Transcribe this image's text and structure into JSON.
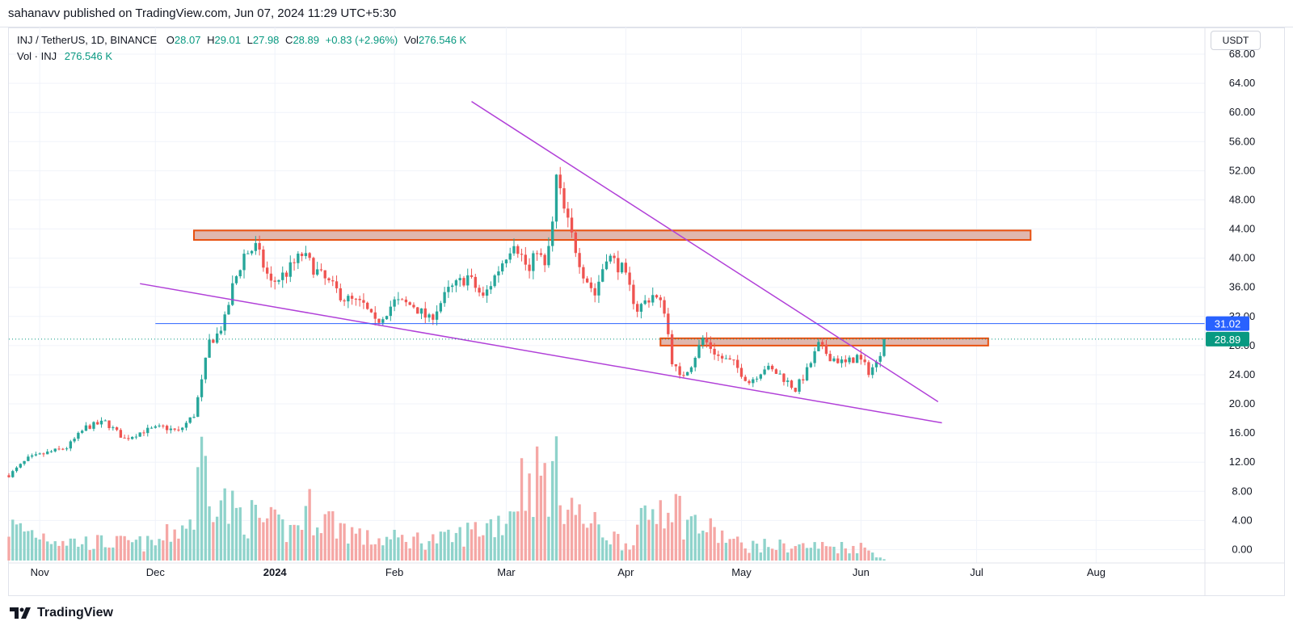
{
  "header": {
    "publisher": "sahanavv published on TradingView.com, Jun 07, 2024 11:29 UTC+5:30"
  },
  "legend": {
    "symbol": "INJ / TetherUS, 1D, BINANCE",
    "open_label": "O",
    "open": "28.07",
    "high_label": "H",
    "high": "29.01",
    "low_label": "L",
    "low": "27.98",
    "close_label": "C",
    "close": "28.89",
    "change": "+0.83 (+2.96%)",
    "vol_label": "Vol",
    "vol": "276.546 K",
    "vol_row_label": "Vol · INJ",
    "vol_row_value": "276.546 K"
  },
  "currency": "USDT",
  "brand": {
    "name": "TradingView"
  },
  "colors": {
    "up": "#26a69a",
    "down": "#ef5350",
    "up_vol": "#8fd3cb",
    "down_vol": "#f5a7a5",
    "trendline": "#b140d8",
    "zone_fill": "#e0b7ae",
    "zone_border": "#e8500f",
    "hline": "#2962ff",
    "last_price": "#089981"
  },
  "chart_data": {
    "type": "candlestick",
    "y_axis": {
      "ticks": [
        "68.00",
        "64.00",
        "60.00",
        "56.00",
        "52.00",
        "48.00",
        "44.00",
        "40.00",
        "36.00",
        "32.00",
        "28.00",
        "24.00",
        "20.00",
        "16.00",
        "12.00",
        "8.00",
        "4.00",
        "0.00"
      ],
      "range": [
        -1.5,
        69
      ]
    },
    "x_axis": {
      "labels": [
        {
          "text": "Nov",
          "date": "2023-11-01"
        },
        {
          "text": "Dec",
          "date": "2023-12-01"
        },
        {
          "text": "2024",
          "date": "2024-01-01",
          "bold": true
        },
        {
          "text": "Feb",
          "date": "2024-02-01"
        },
        {
          "text": "Mar",
          "date": "2024-03-01"
        },
        {
          "text": "Apr",
          "date": "2024-04-01"
        },
        {
          "text": "May",
          "date": "2024-05-01"
        },
        {
          "text": "Jun",
          "date": "2024-06-01"
        },
        {
          "text": "Jul",
          "date": "2024-07-01"
        },
        {
          "text": "Aug",
          "date": "2024-08-01"
        }
      ],
      "range": [
        "2023-10-24",
        "2024-08-29"
      ]
    },
    "close_path": [
      [
        "2023-10-24",
        10.2
      ],
      [
        "2023-10-29",
        12.5
      ],
      [
        "2023-11-03",
        13.3
      ],
      [
        "2023-11-08",
        14.0
      ],
      [
        "2023-11-13",
        16.8
      ],
      [
        "2023-11-18",
        17.5
      ],
      [
        "2023-11-23",
        15.2
      ],
      [
        "2023-11-28",
        16.3
      ],
      [
        "2023-12-03",
        16.8
      ],
      [
        "2023-12-07",
        16.2
      ],
      [
        "2023-12-11",
        18.5
      ],
      [
        "2023-12-13",
        23.0
      ],
      [
        "2023-12-15",
        28.5
      ],
      [
        "2023-12-17",
        29.5
      ],
      [
        "2023-12-19",
        31.5
      ],
      [
        "2023-12-21",
        36.0
      ],
      [
        "2023-12-24",
        40.5
      ],
      [
        "2023-12-27",
        41.5
      ],
      [
        "2023-12-31",
        36.5
      ],
      [
        "2024-01-04",
        38.0
      ],
      [
        "2024-01-08",
        40.5
      ],
      [
        "2024-01-13",
        37.5
      ],
      [
        "2024-01-19",
        34.5
      ],
      [
        "2024-01-24",
        33.5
      ],
      [
        "2024-01-27",
        31.0
      ],
      [
        "2024-02-01",
        34.0
      ],
      [
        "2024-02-06",
        33.5
      ],
      [
        "2024-02-10",
        31.5
      ],
      [
        "2024-02-15",
        35.5
      ],
      [
        "2024-02-20",
        37.5
      ],
      [
        "2024-02-24",
        34.5
      ],
      [
        "2024-02-28",
        38.5
      ],
      [
        "2024-03-03",
        42.5
      ],
      [
        "2024-03-07",
        38.0
      ],
      [
        "2024-03-09",
        41.5
      ],
      [
        "2024-03-11",
        38.5
      ],
      [
        "2024-03-13",
        44.5
      ],
      [
        "2024-03-14",
        51.0
      ],
      [
        "2024-03-16",
        46.5
      ],
      [
        "2024-03-18",
        43.0
      ],
      [
        "2024-03-21",
        38.0
      ],
      [
        "2024-03-24",
        35.0
      ],
      [
        "2024-03-27",
        40.5
      ],
      [
        "2024-03-31",
        38.5
      ],
      [
        "2024-04-04",
        33.0
      ],
      [
        "2024-04-08",
        35.0
      ],
      [
        "2024-04-11",
        33.0
      ],
      [
        "2024-04-13",
        26.0
      ],
      [
        "2024-04-15",
        23.5
      ],
      [
        "2024-04-18",
        25.5
      ],
      [
        "2024-04-21",
        29.0
      ],
      [
        "2024-04-25",
        26.5
      ],
      [
        "2024-04-29",
        25.5
      ],
      [
        "2024-05-03",
        23.0
      ],
      [
        "2024-05-07",
        25.0
      ],
      [
        "2024-05-11",
        24.0
      ],
      [
        "2024-05-15",
        22.0
      ],
      [
        "2024-05-18",
        24.5
      ],
      [
        "2024-05-21",
        28.0
      ],
      [
        "2024-05-24",
        26.5
      ],
      [
        "2024-05-28",
        25.5
      ],
      [
        "2024-05-31",
        26.5
      ],
      [
        "2024-06-03",
        24.5
      ],
      [
        "2024-06-05",
        25.5
      ],
      [
        "2024-06-07",
        28.89
      ]
    ],
    "volume_path_k": [
      [
        "2023-10-24",
        4.0
      ],
      [
        "2023-11-10",
        2.2
      ],
      [
        "2023-12-01",
        2.0
      ],
      [
        "2023-12-11",
        5.0
      ],
      [
        "2023-12-13",
        12.5
      ],
      [
        "2023-12-16",
        9.0
      ],
      [
        "2023-12-20",
        6.0
      ],
      [
        "2024-01-05",
        3.5
      ],
      [
        "2024-01-10",
        6.0
      ],
      [
        "2024-01-25",
        2.5
      ],
      [
        "2024-02-15",
        2.5
      ],
      [
        "2024-03-01",
        5.0
      ],
      [
        "2024-03-05",
        9.5
      ],
      [
        "2024-03-14",
        10.0
      ],
      [
        "2024-03-20",
        5.0
      ],
      [
        "2024-04-01",
        2.0
      ],
      [
        "2024-04-12",
        8.0
      ],
      [
        "2024-04-16",
        5.0
      ],
      [
        "2024-05-01",
        1.8
      ],
      [
        "2024-06-01",
        1.6
      ],
      [
        "2024-06-07",
        0.3
      ]
    ],
    "resistance_zones": [
      {
        "from": "2023-12-11",
        "to": "2024-07-15",
        "y_low": 42.5,
        "y_high": 43.8
      },
      {
        "from": "2024-04-10",
        "to": "2024-07-04",
        "y_low": 28.0,
        "y_high": 29.0
      }
    ],
    "trendlines": [
      {
        "from": [
          "2024-02-21",
          61.5
        ],
        "to": [
          "2024-06-21",
          20.3
        ]
      },
      {
        "from": [
          "2023-11-27",
          36.5
        ],
        "to": [
          "2024-06-22",
          17.4
        ]
      }
    ],
    "horizontal_lines": [
      {
        "y": 31.02,
        "from": "2023-12-01",
        "label": "31.02",
        "color": "#2962ff"
      }
    ],
    "last_price": {
      "value": 28.89,
      "label": "28.89"
    }
  }
}
